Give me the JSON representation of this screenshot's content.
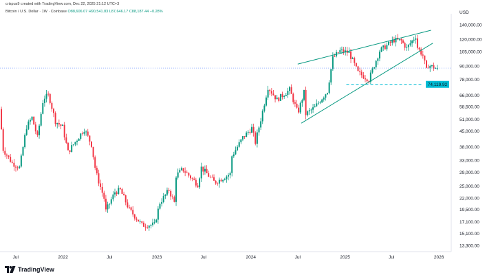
{
  "header": {
    "credit": "crispus9 created with TradingView.com, Dec 22, 2025 21:12 UTC+3",
    "symbol": "Bitcoin / U.S. Dollar · 1W · Coinbase",
    "open": "O88,606.07",
    "high": "H90,541.83",
    "low": "L87,646.17",
    "close": "C88,187.44",
    "change": "−0.28%"
  },
  "logo": {
    "mark": "17",
    "text": "TradingView"
  },
  "chart_data": {
    "type": "candlestick",
    "currency_label": "USD",
    "scale": "log",
    "ylim": [
      13300,
      140000
    ],
    "y_ticks": [
      140000,
      120000,
      105000,
      90000,
      78000,
      66000,
      58500,
      51000,
      45000,
      38000,
      33000,
      29000,
      25000,
      22000,
      19500,
      17100,
      15100,
      13300
    ],
    "y_tick_labels": [
      "140,000.00",
      "120,000.00",
      "105,000.00",
      "90,000.00",
      "78,000.00",
      "66,000.00",
      "58,500.00",
      "51,000.00",
      "45,000.00",
      "38,000.00",
      "33,000.00",
      "29,000.00",
      "25,000.00",
      "22,000.00",
      "19,500.00",
      "17,100.00",
      "15,100.00",
      "13,300.00"
    ],
    "x_range": [
      "2021-05-01",
      "2026-02-15"
    ],
    "x_ticks": [
      {
        "date": "2021-07-01",
        "label": "Jul"
      },
      {
        "date": "2022-01-01",
        "label": "2022"
      },
      {
        "date": "2022-07-01",
        "label": "Jul"
      },
      {
        "date": "2023-01-01",
        "label": "2023"
      },
      {
        "date": "2023-07-01",
        "label": "Jul"
      },
      {
        "date": "2024-01-01",
        "label": "2024"
      },
      {
        "date": "2024-07-01",
        "label": "Jul"
      },
      {
        "date": "2025-01-01",
        "label": "2025"
      },
      {
        "date": "2025-07-01",
        "label": "Jul"
      },
      {
        "date": "2026-01-01",
        "label": "2026"
      }
    ],
    "price_path": [
      [
        "2021-05-03",
        57000
      ],
      [
        "2021-05-17",
        37000
      ],
      [
        "2021-06-21",
        32000
      ],
      [
        "2021-07-20",
        30500
      ],
      [
        "2021-08-15",
        47000
      ],
      [
        "2021-09-06",
        52000
      ],
      [
        "2021-09-27",
        42000
      ],
      [
        "2021-10-20",
        64000
      ],
      [
        "2021-11-10",
        66000
      ],
      [
        "2021-12-06",
        50000
      ],
      [
        "2022-01-03",
        47000
      ],
      [
        "2022-01-24",
        36000
      ],
      [
        "2022-03-28",
        46000
      ],
      [
        "2022-04-25",
        39000
      ],
      [
        "2022-05-12",
        29000
      ],
      [
        "2022-06-13",
        22000
      ],
      [
        "2022-06-18",
        19000
      ],
      [
        "2022-07-25",
        23500
      ],
      [
        "2022-08-15",
        24000
      ],
      [
        "2022-09-19",
        19500
      ],
      [
        "2022-11-08",
        16500
      ],
      [
        "2022-12-26",
        16600
      ],
      [
        "2023-01-16",
        21000
      ],
      [
        "2023-02-20",
        24000
      ],
      [
        "2023-03-13",
        21000
      ],
      [
        "2023-03-20",
        28000
      ],
      [
        "2023-04-14",
        30000
      ],
      [
        "2023-06-12",
        25500
      ],
      [
        "2023-06-26",
        30500
      ],
      [
        "2023-08-17",
        26000
      ],
      [
        "2023-10-16",
        28500
      ],
      [
        "2023-10-23",
        34500
      ],
      [
        "2023-12-04",
        42000
      ],
      [
        "2024-01-08",
        46500
      ],
      [
        "2024-01-22",
        40000
      ],
      [
        "2024-02-12",
        51000
      ],
      [
        "2024-03-11",
        72000
      ],
      [
        "2024-04-15",
        63000
      ],
      [
        "2024-06-03",
        70000
      ],
      [
        "2024-07-05",
        54500
      ],
      [
        "2024-07-29",
        68000
      ],
      [
        "2024-08-05",
        54000
      ],
      [
        "2024-09-09",
        58000
      ],
      [
        "2024-10-28",
        69000
      ],
      [
        "2024-11-18",
        98000
      ],
      [
        "2024-12-16",
        106000
      ],
      [
        "2025-01-20",
        104000
      ],
      [
        "2025-02-24",
        84000
      ],
      [
        "2025-04-07",
        78000
      ],
      [
        "2025-05-19",
        106000
      ],
      [
        "2025-07-14",
        119000
      ],
      [
        "2025-08-11",
        118000
      ],
      [
        "2025-09-01",
        109000
      ],
      [
        "2025-10-06",
        124000
      ],
      [
        "2025-10-13",
        110000
      ],
      [
        "2025-11-03",
        101000
      ],
      [
        "2025-11-17",
        86000
      ],
      [
        "2025-11-24",
        91000
      ],
      [
        "2025-12-22",
        88187
      ]
    ],
    "current_price_line": 88187.44,
    "horizontal_line": {
      "price": 74119.92,
      "label": "74,119.92",
      "color": "#00bcd4",
      "style": "dashed"
    },
    "trendlines": [
      {
        "name": "upper",
        "points": [
          [
            "2024-07-01",
            92000
          ],
          [
            "2025-12-01",
            132000
          ]
        ]
      },
      {
        "name": "lower",
        "points": [
          [
            "2024-07-15",
            49000
          ],
          [
            "2025-12-08",
            115000
          ]
        ]
      }
    ],
    "colors": {
      "up": "#089981",
      "down": "#f23645",
      "trendline": "#089981",
      "current_price_line": "#2962ff",
      "axis_text": "#131722"
    },
    "grid": false
  }
}
